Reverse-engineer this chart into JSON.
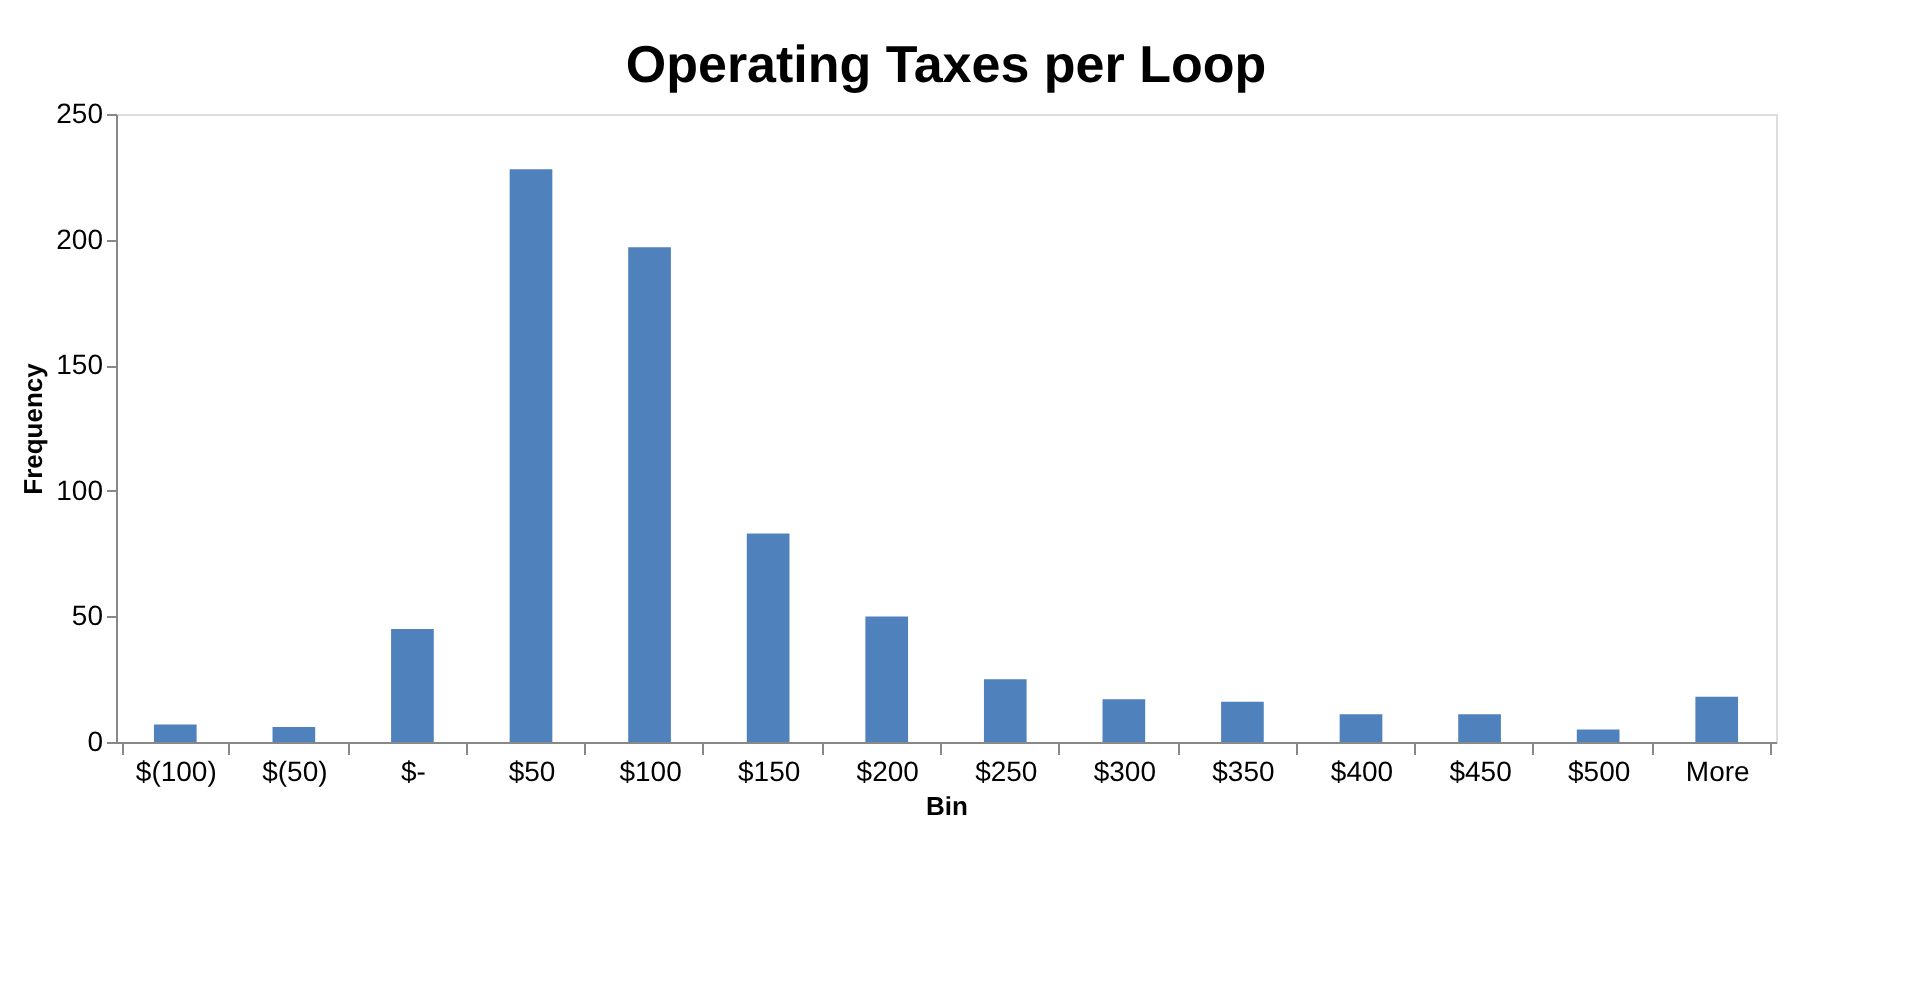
{
  "chart_data": {
    "type": "bar",
    "title": "Operating Taxes per Loop",
    "xlabel": "Bin",
    "ylabel": "Frequency",
    "categories": [
      "$(100)",
      "$(50)",
      "$-",
      "$50",
      "$100",
      "$150",
      "$200",
      "$250",
      "$300",
      "$350",
      "$400",
      "$450",
      "$500",
      "More"
    ],
    "series": [
      {
        "color": "#4f81bd",
        "values": [
          7,
          6,
          45,
          228,
          197,
          83,
          50,
          25,
          17,
          16,
          11,
          11,
          5,
          18
        ]
      }
    ],
    "ylim": [
      0,
      250
    ],
    "yticks": [
      0,
      50,
      100,
      150,
      200,
      250
    ],
    "grid": false,
    "legend": false
  }
}
